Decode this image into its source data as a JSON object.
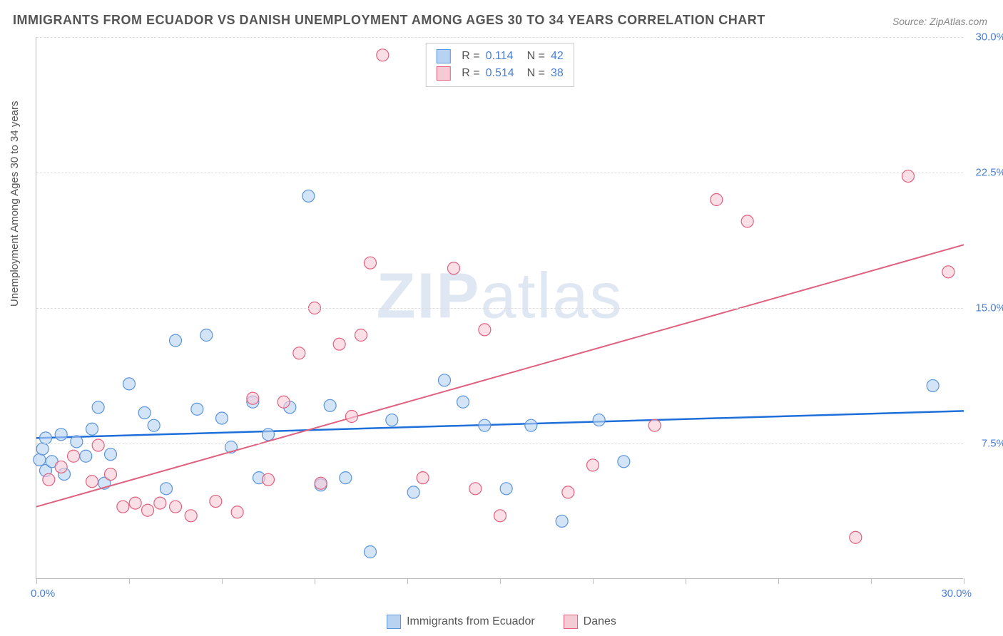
{
  "title": "IMMIGRANTS FROM ECUADOR VS DANISH UNEMPLOYMENT AMONG AGES 30 TO 34 YEARS CORRELATION CHART",
  "source": "Source: ZipAtlas.com",
  "watermark": "ZIPatlas",
  "ylabel": "Unemployment Among Ages 30 to 34 years",
  "chart": {
    "type": "scatter",
    "xlim": [
      0,
      30
    ],
    "ylim": [
      0,
      30
    ],
    "yticks": [
      7.5,
      15.0,
      22.5,
      30.0
    ],
    "ytick_labels": [
      "7.5%",
      "15.0%",
      "22.5%",
      "30.0%"
    ],
    "xtick_positions": [
      0,
      3,
      6,
      9,
      12,
      15,
      18,
      21,
      24,
      27,
      30
    ],
    "x_axis_endpoints": {
      "min_label": "0.0%",
      "max_label": "30.0%"
    },
    "background_color": "#ffffff",
    "grid_color": "#dddddd",
    "series": [
      {
        "name": "Immigrants from Ecuador",
        "color_fill": "#b8d2f1",
        "color_stroke": "#5a94dc",
        "r_value": 0.114,
        "n_value": 42,
        "trend": {
          "x1": 0,
          "y1": 7.8,
          "x2": 30,
          "y2": 9.3,
          "color": "#1e6fd9",
          "width": 2.5
        },
        "points": [
          [
            0.1,
            6.6
          ],
          [
            0.2,
            7.2
          ],
          [
            0.3,
            6.0
          ],
          [
            0.3,
            7.8
          ],
          [
            0.5,
            6.5
          ],
          [
            0.8,
            8.0
          ],
          [
            0.9,
            5.8
          ],
          [
            1.3,
            7.6
          ],
          [
            1.6,
            6.8
          ],
          [
            1.8,
            8.3
          ],
          [
            2.0,
            9.5
          ],
          [
            2.2,
            5.3
          ],
          [
            2.4,
            6.9
          ],
          [
            3.0,
            10.8
          ],
          [
            3.5,
            9.2
          ],
          [
            3.8,
            8.5
          ],
          [
            4.2,
            5.0
          ],
          [
            4.5,
            13.2
          ],
          [
            5.2,
            9.4
          ],
          [
            5.5,
            13.5
          ],
          [
            6.0,
            8.9
          ],
          [
            6.3,
            7.3
          ],
          [
            7.0,
            9.8
          ],
          [
            7.2,
            5.6
          ],
          [
            7.5,
            8.0
          ],
          [
            8.2,
            9.5
          ],
          [
            8.8,
            21.2
          ],
          [
            9.2,
            5.2
          ],
          [
            9.5,
            9.6
          ],
          [
            10.0,
            5.6
          ],
          [
            10.8,
            1.5
          ],
          [
            11.5,
            8.8
          ],
          [
            12.2,
            4.8
          ],
          [
            13.2,
            11.0
          ],
          [
            13.8,
            9.8
          ],
          [
            14.5,
            8.5
          ],
          [
            15.2,
            5.0
          ],
          [
            16.0,
            8.5
          ],
          [
            17.0,
            3.2
          ],
          [
            18.2,
            8.8
          ],
          [
            19.0,
            6.5
          ],
          [
            29.0,
            10.7
          ]
        ]
      },
      {
        "name": "Danes",
        "color_fill": "#f6cad5",
        "color_stroke": "#e0607f",
        "r_value": 0.514,
        "n_value": 38,
        "trend": {
          "x1": 0,
          "y1": 4.0,
          "x2": 30,
          "y2": 18.5,
          "color": "#e0607f",
          "width": 2
        },
        "points": [
          [
            0.4,
            5.5
          ],
          [
            0.8,
            6.2
          ],
          [
            1.2,
            6.8
          ],
          [
            1.8,
            5.4
          ],
          [
            2.0,
            7.4
          ],
          [
            2.4,
            5.8
          ],
          [
            2.8,
            4.0
          ],
          [
            3.2,
            4.2
          ],
          [
            3.6,
            3.8
          ],
          [
            4.0,
            4.2
          ],
          [
            4.5,
            4.0
          ],
          [
            5.0,
            3.5
          ],
          [
            5.8,
            4.3
          ],
          [
            6.5,
            3.7
          ],
          [
            7.0,
            10.0
          ],
          [
            7.5,
            5.5
          ],
          [
            8.0,
            9.8
          ],
          [
            8.5,
            12.5
          ],
          [
            9.0,
            15.0
          ],
          [
            9.2,
            5.3
          ],
          [
            9.8,
            13.0
          ],
          [
            10.2,
            9.0
          ],
          [
            10.5,
            13.5
          ],
          [
            10.8,
            17.5
          ],
          [
            11.2,
            29.0
          ],
          [
            12.5,
            5.6
          ],
          [
            13.5,
            17.2
          ],
          [
            14.2,
            5.0
          ],
          [
            14.5,
            13.8
          ],
          [
            15.0,
            3.5
          ],
          [
            17.2,
            4.8
          ],
          [
            18.0,
            6.3
          ],
          [
            20.0,
            8.5
          ],
          [
            22.0,
            21.0
          ],
          [
            23.0,
            19.8
          ],
          [
            26.5,
            2.3
          ],
          [
            28.2,
            22.3
          ],
          [
            29.5,
            17.0
          ]
        ]
      }
    ]
  },
  "legend_top": {
    "rows": [
      {
        "swatch_fill": "#b8d2f1",
        "swatch_stroke": "#5a94dc",
        "r_label": "R =",
        "r_val": "0.114",
        "n_label": "N =",
        "n_val": "42"
      },
      {
        "swatch_fill": "#f6cad5",
        "swatch_stroke": "#e0607f",
        "r_label": "R =",
        "r_val": "0.514",
        "n_label": "N =",
        "n_val": "38"
      }
    ]
  },
  "legend_bottom": [
    {
      "swatch_fill": "#b8d2f1",
      "swatch_stroke": "#5a94dc",
      "label": "Immigrants from Ecuador"
    },
    {
      "swatch_fill": "#f6cad5",
      "swatch_stroke": "#e0607f",
      "label": "Danes"
    }
  ]
}
